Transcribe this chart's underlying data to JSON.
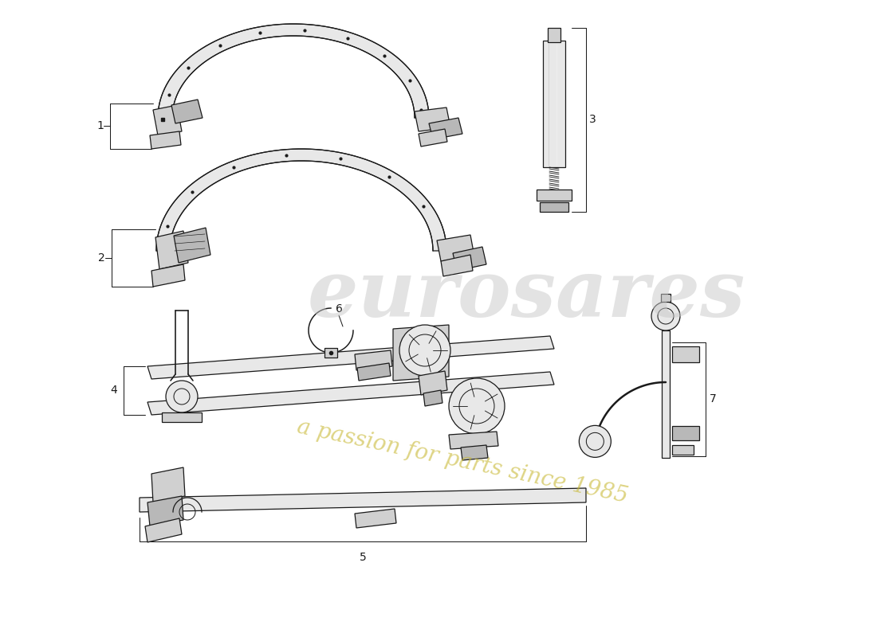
{
  "bg_color": "#ffffff",
  "line_color": "#1a1a1a",
  "fill_light": "#e8e8e8",
  "fill_mid": "#d0d0d0",
  "fill_dark": "#b8b8b8",
  "wm1_color": "#c8c8c8",
  "wm2_color": "#c8b832",
  "lw": 0.9,
  "part1_label": "1",
  "part2_label": "2",
  "part3_label": "3",
  "part4_label": "4",
  "part5_label": "5",
  "part6_label": "6",
  "part7_label": "7",
  "fig_w": 11.0,
  "fig_h": 8.0,
  "dpi": 100
}
